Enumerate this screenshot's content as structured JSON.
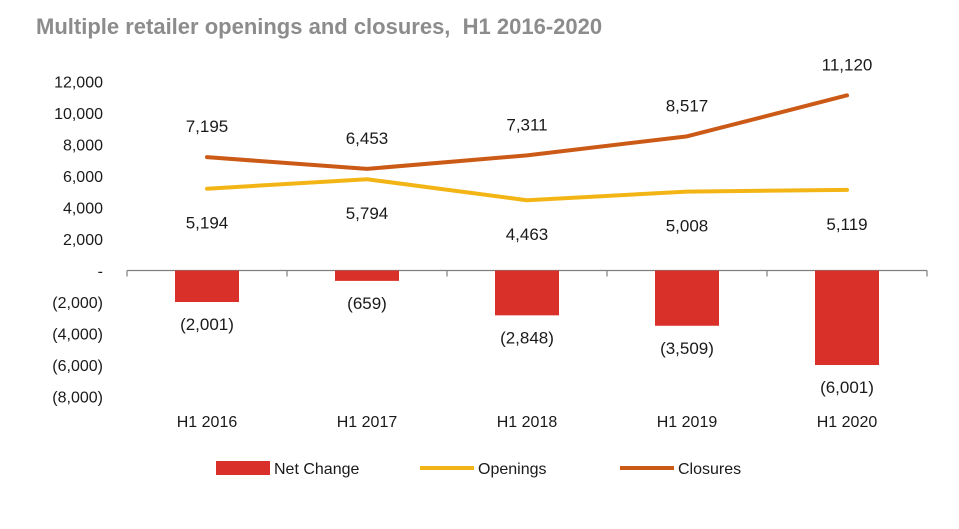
{
  "chart_data": {
    "type": "bar+line",
    "title": "Multiple retailer openings and closures,  H1 2016-2020",
    "categories": [
      "H1 2016",
      "H1 2017",
      "H1 2018",
      "H1 2019",
      "H1 2020"
    ],
    "ylim": [
      -8000,
      12000
    ],
    "yticks": [
      12000,
      10000,
      8000,
      6000,
      4000,
      2000,
      0,
      -2000,
      -4000,
      -6000,
      -8000
    ],
    "ytick_labels": [
      "12,000",
      "10,000",
      "8,000",
      "6,000",
      "4,000",
      "2,000",
      "-",
      "(2,000)",
      "(4,000)",
      "(6,000)",
      "(8,000)"
    ],
    "series": [
      {
        "name": "Net Change",
        "type": "bar",
        "color": "#d9302a",
        "values": [
          -2001,
          -659,
          -2848,
          -3509,
          -6001
        ],
        "labels": [
          "(2,001)",
          "(659)",
          "(2,848)",
          "(3,509)",
          "(6,001)"
        ]
      },
      {
        "name": "Openings",
        "type": "line",
        "color": "#f2b515",
        "values": [
          5194,
          5794,
          4463,
          5008,
          5119
        ],
        "labels": [
          "5,194",
          "5,794",
          "4,463",
          "5,008",
          "5,119"
        ]
      },
      {
        "name": "Closures",
        "type": "line",
        "color": "#cc5a17",
        "values": [
          7195,
          6453,
          7311,
          8517,
          11120
        ],
        "labels": [
          "7,195",
          "6,453",
          "7,311",
          "8,517",
          "11,120"
        ]
      }
    ],
    "legend": [
      "Net Change",
      "Openings",
      "Closures"
    ]
  }
}
